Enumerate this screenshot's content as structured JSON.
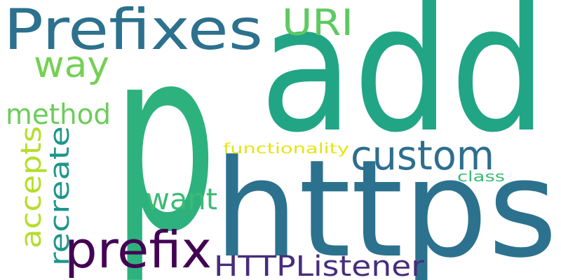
{
  "words": [
    {
      "text": "p",
      "color": "#2db27d",
      "orientation": "horizontal"
    },
    {
      "text": "add",
      "color": "#21a585",
      "orientation": "horizontal"
    },
    {
      "text": "https",
      "color": "#2c728e",
      "orientation": "horizontal"
    },
    {
      "text": "Prefixes",
      "color": "#2c718e",
      "orientation": "horizontal"
    },
    {
      "text": "custom",
      "color": "#2e6e8e",
      "orientation": "horizontal"
    },
    {
      "text": "prefix",
      "color": "#440154",
      "orientation": "horizontal"
    },
    {
      "text": "HTTPListener",
      "color": "#472d7b",
      "orientation": "horizontal"
    },
    {
      "text": "URI",
      "color": "#5ec962",
      "orientation": "horizontal"
    },
    {
      "text": "way",
      "color": "#75d054",
      "orientation": "horizontal"
    },
    {
      "text": "method",
      "color": "#6ccd5a",
      "orientation": "horizontal"
    },
    {
      "text": "want",
      "color": "#3bbb75",
      "orientation": "horizontal"
    },
    {
      "text": "accepts",
      "color": "#b5de2b",
      "orientation": "vertical"
    },
    {
      "text": "recreate",
      "color": "#1f968b",
      "orientation": "vertical"
    },
    {
      "text": "functionality",
      "color": "#e5e419",
      "orientation": "horizontal"
    },
    {
      "text": "class",
      "color": "#3aba76",
      "orientation": "horizontal"
    }
  ]
}
